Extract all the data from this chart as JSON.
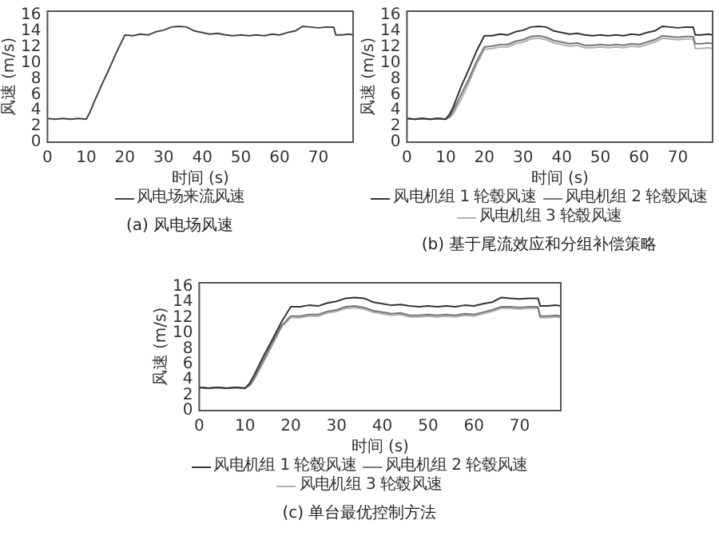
{
  "chart_data": [
    {
      "type": "line",
      "title": "(a) 风电场风速",
      "xlabel": "时间 (s)",
      "ylabel": "风速 (m/s)",
      "xlim": [
        0,
        79
      ],
      "ylim": [
        0,
        16.5
      ],
      "xticks": [
        0,
        10,
        20,
        30,
        40,
        50,
        60,
        70
      ],
      "yticks": [
        0,
        2,
        4,
        6,
        8,
        10,
        12,
        14,
        16
      ],
      "legend": "bottom",
      "marker": "none",
      "x": [
        0,
        2,
        4,
        6,
        8,
        10,
        11,
        12,
        14,
        16,
        18,
        20,
        22,
        24,
        26,
        28,
        30,
        32,
        34,
        36,
        38,
        40,
        42,
        44,
        46,
        48,
        50,
        52,
        54,
        56,
        58,
        60,
        62,
        64,
        66,
        68,
        70,
        72,
        74,
        74.5,
        76,
        78,
        79
      ],
      "series": [
        {
          "name": "风电场来流风速",
          "color": "#444444",
          "values": [
            3.0,
            2.9,
            3.0,
            2.9,
            3.0,
            2.9,
            3.8,
            5.0,
            7.2,
            9.3,
            11.5,
            13.5,
            13.4,
            13.6,
            13.5,
            13.9,
            14.1,
            14.5,
            14.6,
            14.5,
            14.0,
            13.8,
            13.6,
            13.7,
            13.5,
            13.4,
            13.5,
            13.4,
            13.5,
            13.4,
            13.6,
            13.5,
            13.8,
            14.0,
            14.6,
            14.5,
            14.4,
            14.5,
            14.5,
            13.5,
            13.5,
            13.6,
            13.5
          ]
        }
      ]
    },
    {
      "type": "line",
      "title": "(b) 基于尾流效应和分组补偿策略",
      "xlabel": "时间 (s)",
      "ylabel": "风速 (m/s)",
      "xlim": [
        0,
        79
      ],
      "ylim": [
        0,
        16.5
      ],
      "xticks": [
        0,
        10,
        20,
        30,
        40,
        50,
        60,
        70
      ],
      "yticks": [
        0,
        2,
        4,
        6,
        8,
        10,
        12,
        14,
        16
      ],
      "legend": "bottom",
      "marker": "none",
      "x": [
        0,
        2,
        4,
        6,
        8,
        10,
        11,
        12,
        14,
        16,
        18,
        20,
        22,
        24,
        26,
        28,
        30,
        32,
        34,
        36,
        38,
        40,
        42,
        44,
        46,
        48,
        50,
        52,
        54,
        56,
        58,
        60,
        62,
        64,
        66,
        68,
        70,
        72,
        74,
        74.5,
        76,
        78,
        79
      ],
      "series": [
        {
          "name": "风电机组 1 轮毂风速",
          "color": "#333333",
          "values": [
            3.0,
            2.9,
            3.0,
            2.9,
            3.0,
            2.9,
            3.5,
            4.5,
            7.0,
            9.2,
            11.5,
            13.4,
            13.4,
            13.6,
            13.5,
            13.9,
            14.1,
            14.5,
            14.6,
            14.5,
            14.0,
            13.8,
            13.6,
            13.7,
            13.5,
            13.4,
            13.5,
            13.4,
            13.5,
            13.4,
            13.6,
            13.5,
            13.8,
            14.0,
            14.6,
            14.5,
            14.4,
            14.5,
            14.5,
            13.5,
            13.5,
            13.6,
            13.5
          ]
        },
        {
          "name": "风电机组 2 轮毂风速",
          "color": "#777777",
          "values": [
            3.0,
            2.9,
            3.0,
            2.9,
            3.0,
            2.9,
            3.2,
            4.0,
            6.0,
            8.0,
            10.2,
            12.0,
            12.1,
            12.3,
            12.3,
            12.7,
            12.9,
            13.3,
            13.4,
            13.2,
            12.8,
            12.6,
            12.4,
            12.5,
            12.2,
            12.2,
            12.3,
            12.2,
            12.3,
            12.2,
            12.4,
            12.3,
            12.6,
            12.9,
            13.4,
            13.3,
            13.2,
            13.3,
            13.3,
            12.4,
            12.4,
            12.5,
            12.4
          ]
        },
        {
          "name": "风电机组 3 轮毂风速",
          "color": "#b0b0b0",
          "values": [
            3.0,
            2.9,
            3.0,
            2.9,
            3.0,
            2.9,
            3.1,
            3.6,
            5.4,
            7.5,
            9.8,
            11.7,
            11.8,
            12.0,
            12.0,
            12.4,
            12.6,
            13.0,
            13.1,
            12.9,
            12.5,
            12.3,
            12.1,
            12.2,
            11.9,
            11.9,
            12.0,
            11.9,
            12.0,
            11.9,
            12.1,
            12.0,
            12.3,
            12.6,
            13.1,
            13.0,
            12.9,
            13.0,
            13.0,
            11.8,
            11.8,
            11.9,
            11.8
          ]
        }
      ]
    },
    {
      "type": "line",
      "title": "(c) 单台最优控制方法",
      "xlabel": "时间 (s)",
      "ylabel": "风速 (m/s)",
      "xlim": [
        0,
        79
      ],
      "ylim": [
        0,
        16.5
      ],
      "xticks": [
        0,
        10,
        20,
        30,
        40,
        50,
        60,
        70
      ],
      "yticks": [
        0,
        2,
        4,
        6,
        8,
        10,
        12,
        14,
        16
      ],
      "legend": "bottom",
      "marker": "none",
      "x": [
        0,
        2,
        4,
        6,
        8,
        10,
        11,
        12,
        14,
        16,
        18,
        20,
        22,
        24,
        26,
        28,
        30,
        32,
        34,
        36,
        38,
        40,
        42,
        44,
        46,
        48,
        50,
        52,
        54,
        56,
        58,
        60,
        62,
        64,
        66,
        68,
        70,
        72,
        74,
        74.5,
        76,
        78,
        79
      ],
      "series": [
        {
          "name": "风电机组 1 轮毂风速",
          "color": "#333333",
          "values": [
            3.0,
            2.9,
            3.0,
            2.9,
            3.0,
            2.9,
            3.5,
            4.6,
            7.0,
            9.2,
            11.5,
            13.4,
            13.4,
            13.6,
            13.5,
            13.9,
            14.1,
            14.5,
            14.6,
            14.5,
            14.0,
            13.8,
            13.6,
            13.7,
            13.5,
            13.4,
            13.5,
            13.4,
            13.5,
            13.4,
            13.6,
            13.5,
            13.8,
            14.0,
            14.6,
            14.5,
            14.4,
            14.5,
            14.5,
            13.5,
            13.5,
            13.6,
            13.5
          ]
        },
        {
          "name": "风电机组 2 轮毂风速",
          "color": "#777777",
          "values": [
            3.0,
            2.9,
            3.0,
            2.9,
            3.0,
            2.9,
            3.3,
            4.2,
            6.5,
            8.8,
            11.0,
            12.2,
            12.2,
            12.4,
            12.4,
            12.8,
            13.0,
            13.4,
            13.5,
            13.3,
            12.9,
            12.7,
            12.5,
            12.6,
            12.3,
            12.3,
            12.4,
            12.3,
            12.4,
            12.3,
            12.5,
            12.4,
            12.7,
            13.0,
            13.4,
            13.4,
            13.3,
            13.4,
            13.4,
            12.2,
            12.2,
            12.3,
            12.2
          ]
        },
        {
          "name": "风电机组 3 轮毂风速",
          "color": "#b0b0b0",
          "values": [
            3.0,
            2.9,
            3.0,
            2.9,
            3.0,
            2.9,
            3.2,
            4.0,
            6.2,
            8.5,
            10.8,
            12.0,
            12.0,
            12.2,
            12.2,
            12.6,
            12.8,
            13.2,
            13.3,
            13.1,
            12.7,
            12.5,
            12.3,
            12.4,
            12.1,
            12.1,
            12.2,
            12.1,
            12.2,
            12.1,
            12.3,
            12.2,
            12.5,
            12.8,
            13.2,
            13.2,
            13.1,
            13.2,
            13.2,
            12.0,
            12.0,
            12.1,
            12.0
          ]
        }
      ]
    }
  ]
}
